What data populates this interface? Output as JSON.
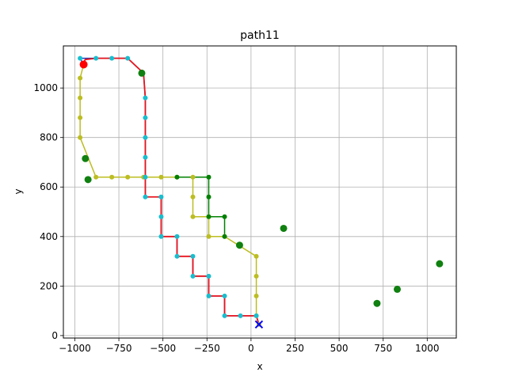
{
  "chart_data": {
    "type": "line",
    "title": "path11",
    "xlabel": "x",
    "ylabel": "y",
    "xlim": [
      -1065,
      1165
    ],
    "ylim": [
      -10,
      1170
    ],
    "xticks": [
      -1000,
      -750,
      -500,
      -250,
      0,
      250,
      500,
      750,
      1000
    ],
    "yticks": [
      0,
      200,
      400,
      600,
      800,
      1000
    ],
    "grid": true,
    "colors": {
      "olive": "#bcbd22",
      "green": "#008000",
      "blue_path": "#1f3fbf",
      "red": "#e8141e",
      "cyan": "#17becf",
      "big_green": "#108010",
      "start": "#ff0000",
      "goal": "#0000ff"
    },
    "obstacle_points": [
      {
        "x": -940,
        "y": 715
      },
      {
        "x": -925,
        "y": 630
      },
      {
        "x": -620,
        "y": 1060
      },
      {
        "x": -65,
        "y": 365
      },
      {
        "x": 185,
        "y": 433
      },
      {
        "x": 715,
        "y": 130
      },
      {
        "x": 830,
        "y": 187
      },
      {
        "x": 1070,
        "y": 290
      }
    ],
    "series": [
      {
        "color_key": "olive",
        "points": [
          [
            -950,
            1095
          ],
          [
            -970,
            1040
          ],
          [
            -970,
            960
          ],
          [
            -970,
            880
          ],
          [
            -970,
            800
          ],
          [
            -880,
            640
          ],
          [
            -790,
            640
          ],
          [
            -700,
            640
          ],
          [
            -610,
            640
          ],
          [
            -510,
            640
          ],
          [
            -420,
            640
          ],
          [
            -330,
            640
          ],
          [
            -330,
            560
          ],
          [
            -330,
            480
          ],
          [
            -240,
            480
          ],
          [
            -240,
            400
          ],
          [
            -150,
            400
          ],
          [
            30,
            320
          ],
          [
            30,
            240
          ],
          [
            30,
            160
          ],
          [
            30,
            80
          ],
          [
            45,
            45
          ]
        ]
      },
      {
        "color_key": "green",
        "points": [
          [
            -420,
            640
          ],
          [
            -240,
            640
          ],
          [
            -240,
            560
          ],
          [
            -240,
            480
          ],
          [
            -150,
            480
          ],
          [
            -150,
            400
          ]
        ]
      },
      {
        "color_key": "blue_path",
        "points": [
          [
            -955,
            1100
          ],
          [
            -970,
            1120
          ],
          [
            -880,
            1120
          ],
          [
            -790,
            1120
          ],
          [
            -700,
            1120
          ],
          [
            -610,
            1060
          ],
          [
            -600,
            960
          ],
          [
            -600,
            880
          ],
          [
            -600,
            800
          ],
          [
            -600,
            720
          ],
          [
            -600,
            640
          ],
          [
            -600,
            560
          ],
          [
            -510,
            560
          ],
          [
            -510,
            480
          ],
          [
            -510,
            400
          ],
          [
            -420,
            400
          ],
          [
            -420,
            320
          ],
          [
            -330,
            320
          ],
          [
            -330,
            240
          ],
          [
            -240,
            240
          ],
          [
            -240,
            160
          ],
          [
            -150,
            160
          ],
          [
            -150,
            80
          ],
          [
            -60,
            80
          ],
          [
            30,
            80
          ],
          [
            45,
            45
          ]
        ]
      },
      {
        "color_key": "red",
        "points": [
          [
            -955,
            1100
          ],
          [
            -940,
            1115
          ],
          [
            -880,
            1120
          ],
          [
            -790,
            1120
          ],
          [
            -700,
            1120
          ],
          [
            -610,
            1060
          ],
          [
            -600,
            960
          ],
          [
            -600,
            880
          ],
          [
            -600,
            800
          ],
          [
            -600,
            720
          ],
          [
            -600,
            640
          ],
          [
            -600,
            560
          ],
          [
            -510,
            560
          ],
          [
            -510,
            480
          ],
          [
            -510,
            400
          ],
          [
            -420,
            400
          ],
          [
            -420,
            320
          ],
          [
            -330,
            320
          ],
          [
            -330,
            240
          ],
          [
            -240,
            240
          ],
          [
            -240,
            160
          ],
          [
            -150,
            160
          ],
          [
            -150,
            80
          ],
          [
            -60,
            80
          ],
          [
            30,
            80
          ],
          [
            45,
            45
          ]
        ]
      }
    ],
    "cyan_nodes": [
      [
        -970,
        1120
      ],
      [
        -880,
        1120
      ],
      [
        -790,
        1120
      ],
      [
        -700,
        1120
      ],
      [
        -600,
        960
      ],
      [
        -600,
        880
      ],
      [
        -600,
        800
      ],
      [
        -600,
        720
      ],
      [
        -600,
        640
      ],
      [
        -600,
        560
      ],
      [
        -510,
        560
      ],
      [
        -510,
        480
      ],
      [
        -510,
        400
      ],
      [
        -420,
        400
      ],
      [
        -420,
        320
      ],
      [
        -330,
        320
      ],
      [
        -330,
        240
      ],
      [
        -240,
        240
      ],
      [
        -240,
        160
      ],
      [
        -150,
        160
      ],
      [
        -150,
        80
      ],
      [
        -60,
        80
      ],
      [
        30,
        80
      ]
    ],
    "start": {
      "x": -950,
      "y": 1095
    },
    "goal": {
      "x": 45,
      "y": 45
    }
  }
}
